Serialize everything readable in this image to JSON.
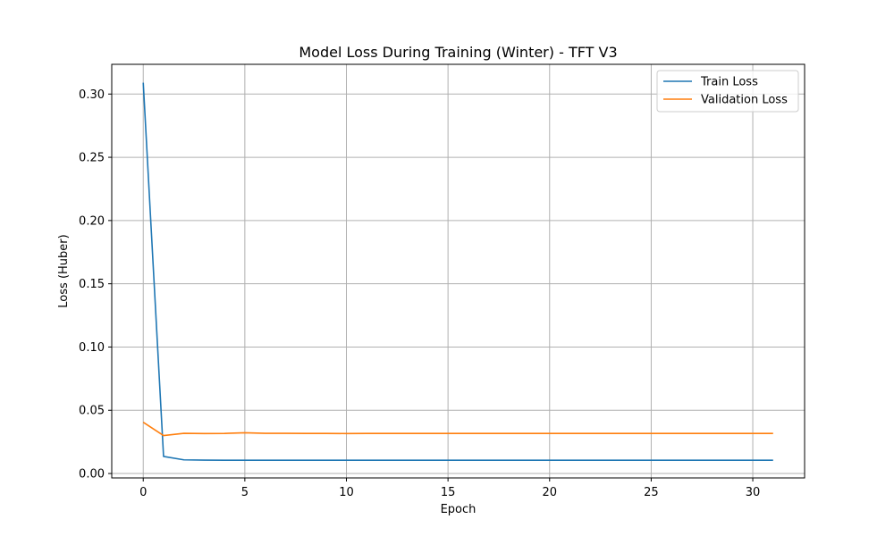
{
  "chart_data": {
    "type": "line",
    "title": "Model Loss During Training (Winter) - TFT V3",
    "xlabel": "Epoch",
    "ylabel": "Loss (Huber)",
    "xlim": [
      -1.55,
      32.55
    ],
    "ylim": [
      -0.0035,
      0.3235
    ],
    "xticks": [
      0,
      5,
      10,
      15,
      20,
      25,
      30
    ],
    "xtick_labels": [
      "0",
      "5",
      "10",
      "15",
      "20",
      "25",
      "30"
    ],
    "yticks": [
      0.0,
      0.05,
      0.1,
      0.15,
      0.2,
      0.25,
      0.3
    ],
    "ytick_labels": [
      "0.00",
      "0.05",
      "0.10",
      "0.15",
      "0.20",
      "0.25",
      "0.30"
    ],
    "grid": true,
    "legend_position": "top-right",
    "x": [
      0,
      1,
      2,
      3,
      4,
      5,
      6,
      7,
      8,
      9,
      10,
      11,
      12,
      13,
      14,
      15,
      16,
      17,
      18,
      19,
      20,
      21,
      22,
      23,
      24,
      25,
      26,
      27,
      28,
      29,
      30,
      31
    ],
    "series": [
      {
        "name": "Train Loss",
        "color": "#1f77b4",
        "values": [
          0.309,
          0.0135,
          0.0108,
          0.0106,
          0.0105,
          0.0105,
          0.0105,
          0.0105,
          0.0105,
          0.0105,
          0.0105,
          0.0105,
          0.0105,
          0.0105,
          0.0105,
          0.0105,
          0.0105,
          0.0105,
          0.0105,
          0.0105,
          0.0105,
          0.0105,
          0.0105,
          0.0105,
          0.0105,
          0.0105,
          0.0105,
          0.0105,
          0.0105,
          0.0105,
          0.0105,
          0.0105
        ]
      },
      {
        "name": "Validation Loss",
        "color": "#ff7f0e",
        "values": [
          0.0405,
          0.03,
          0.0318,
          0.0316,
          0.0317,
          0.0322,
          0.0318,
          0.0318,
          0.0317,
          0.0317,
          0.0316,
          0.0317,
          0.0317,
          0.0317,
          0.0317,
          0.0317,
          0.0317,
          0.0317,
          0.0317,
          0.0317,
          0.0317,
          0.0317,
          0.0317,
          0.0317,
          0.0317,
          0.0317,
          0.0317,
          0.0317,
          0.0317,
          0.0317,
          0.0317,
          0.0317
        ]
      }
    ]
  }
}
